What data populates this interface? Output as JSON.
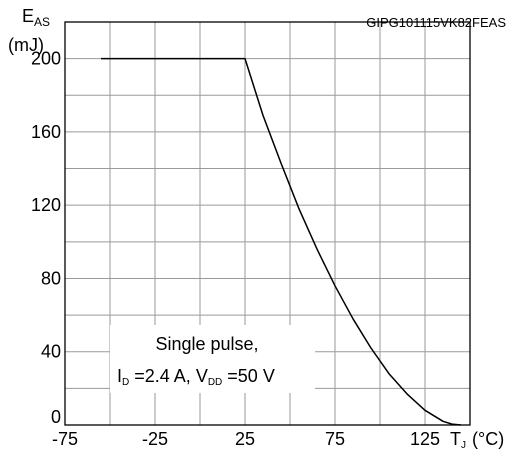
{
  "chart_data": {
    "type": "line",
    "code": "GIPG101115VK82FEAS",
    "y_axis": {
      "symbol": "E",
      "sub": "AS",
      "unit": "(mJ)"
    },
    "x_axis": {
      "symbol": "T",
      "sub": "J",
      "unit": "(°C)"
    },
    "xlim": [
      -75,
      150
    ],
    "ylim": [
      0,
      220
    ],
    "x_ticks": [
      -75,
      -25,
      25,
      75,
      125
    ],
    "y_ticks": [
      0,
      40,
      80,
      120,
      160,
      200
    ],
    "grid": true,
    "annotation": {
      "line1": "Single pulse,",
      "id_sym": "I",
      "id_sub": "D",
      "id_val": " =2.4 A, ",
      "vdd_sym": "V",
      "vdd_sub": "DD",
      "vdd_val": " =50 V"
    },
    "series": [
      {
        "x": [
          -55,
          25,
          35,
          45,
          55,
          65,
          75,
          85,
          95,
          105,
          115,
          125,
          135,
          140,
          145
        ],
        "y": [
          200,
          200,
          169,
          143,
          118,
          96,
          76,
          58,
          42,
          28,
          17,
          8,
          2,
          0.5,
          0
        ]
      }
    ]
  }
}
